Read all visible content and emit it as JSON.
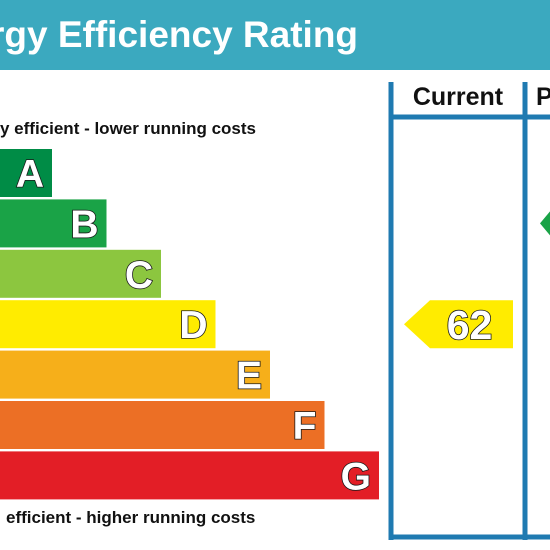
{
  "header": {
    "title": "rgy Efficiency Rating"
  },
  "columns": {
    "current": "Current",
    "potential": "P"
  },
  "captions": {
    "top": "y efficient - lower running costs",
    "bottom": "efficient - higher running costs"
  },
  "colors": {
    "header_bg": "#3ba9bf",
    "frame": "#1f7ab1"
  },
  "chart_data": {
    "type": "bar",
    "title": "",
    "categories": [
      "A",
      "B",
      "C",
      "D",
      "E",
      "F",
      "G"
    ],
    "band_colors": [
      "#008c46",
      "#1aa347",
      "#8cc63f",
      "#ffec00",
      "#f6af1a",
      "#ec6f25",
      "#e31e26"
    ],
    "current": {
      "value": "62",
      "band": "D",
      "color": "#ffec00"
    },
    "potential": {
      "band": "B",
      "color": "#1aa347"
    }
  }
}
